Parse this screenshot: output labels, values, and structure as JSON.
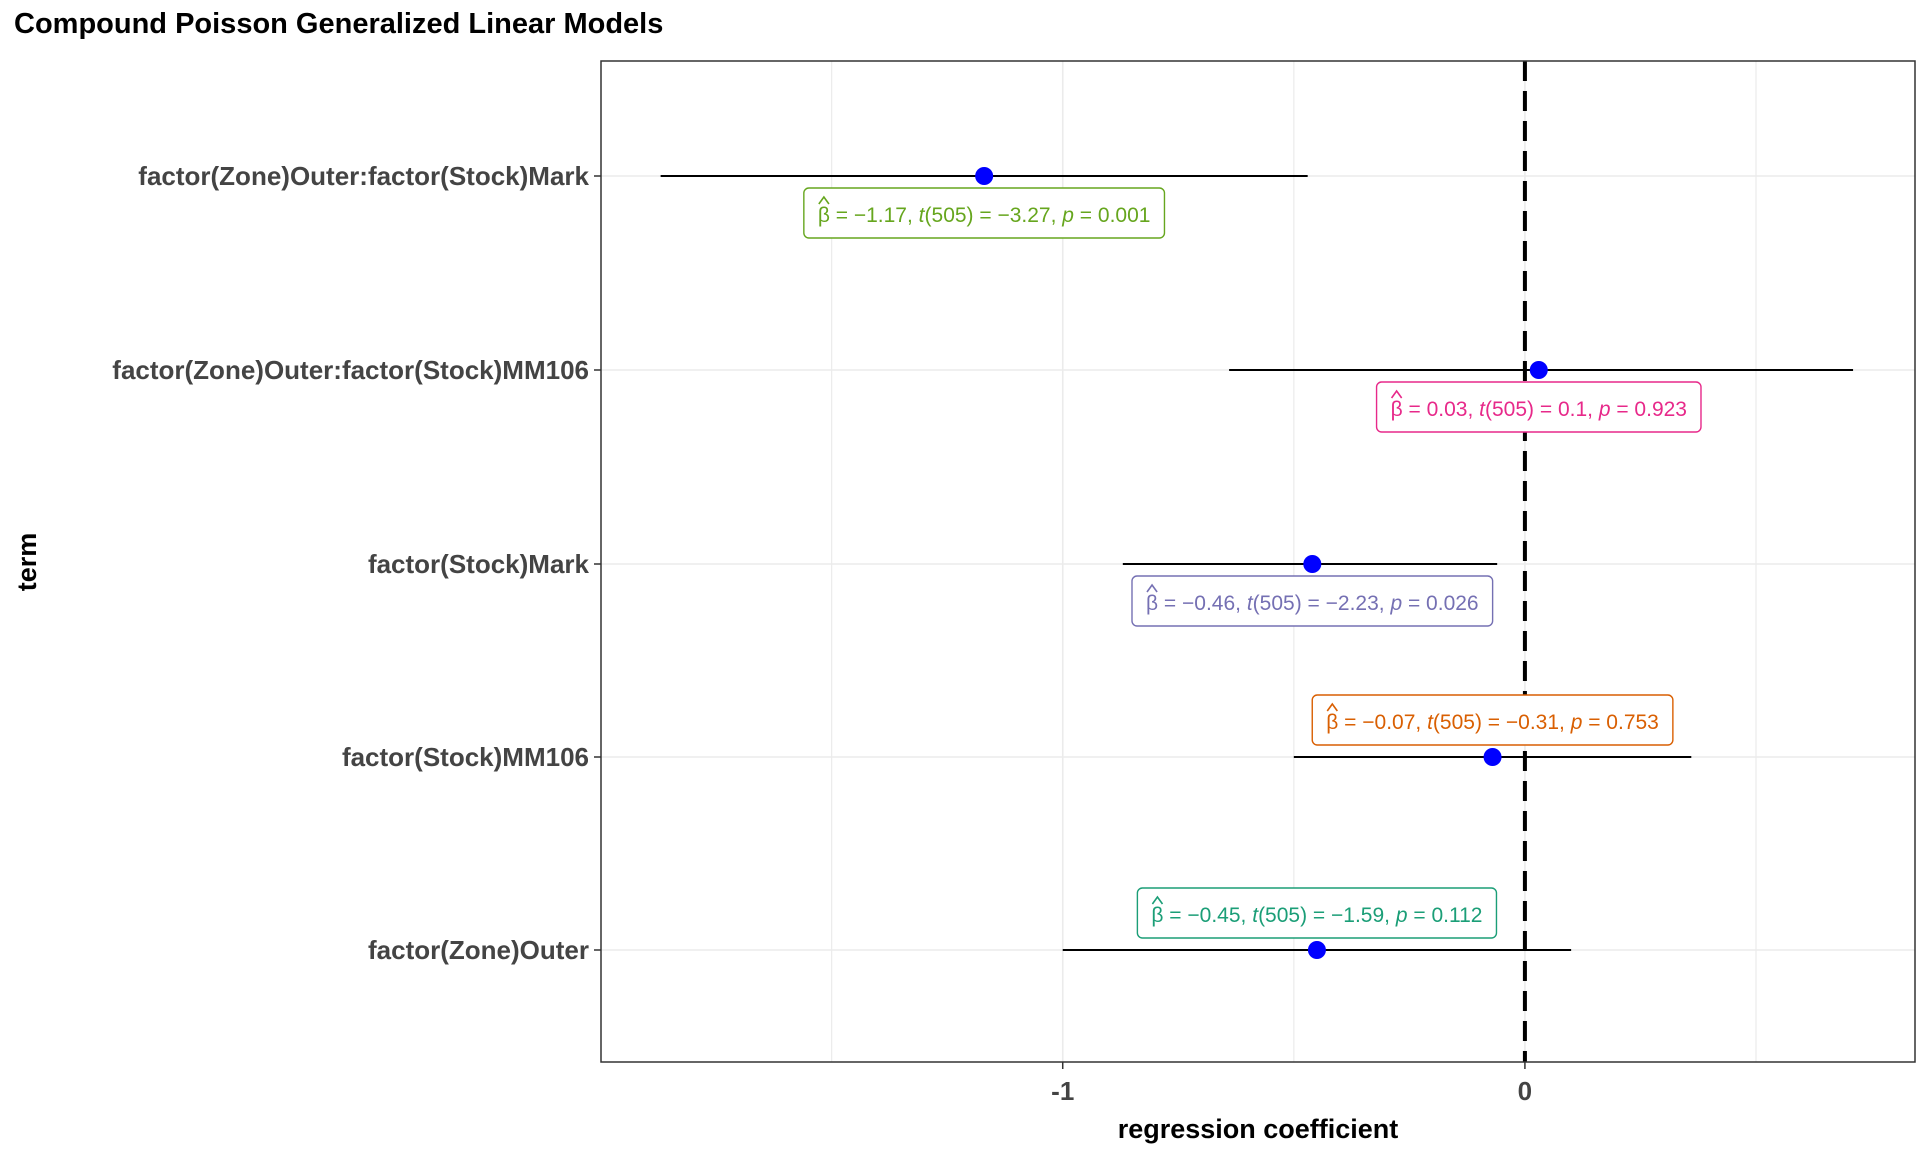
{
  "chart_data": {
    "type": "forest",
    "title": "Compound Poisson Generalized Linear Models",
    "xlabel": "regression coefficient",
    "ylabel": "term",
    "xlim": [
      -1.999,
      0.844
    ],
    "x_ticks": [
      -1,
      0
    ],
    "x_tick_labels": [
      "-1",
      "0"
    ],
    "x_minor_gridlines": [
      -1.5,
      -0.5,
      0.5
    ],
    "reference_line": 0,
    "grid": true,
    "point_color": "#0000ff",
    "terms": [
      {
        "term": "factor(Zone)Outer:factor(Stock)Mark",
        "estimate": -1.17,
        "conf_low": -1.87,
        "conf_high": -0.47,
        "label_color": "#66a61e",
        "label_pos": "below",
        "label_parts": [
          "β",
          " = −1.17,  ",
          "t",
          "(505) = −3.27,  ",
          "p",
          " = 0.001"
        ]
      },
      {
        "term": "factor(Zone)Outer:factor(Stock)MM106",
        "estimate": 0.03,
        "conf_low": -0.64,
        "conf_high": 0.71,
        "label_color": "#e7298a",
        "label_pos": "below",
        "label_parts": [
          "β",
          " = 0.03,  ",
          "t",
          "(505) = 0.1,  ",
          "p",
          " = 0.923"
        ]
      },
      {
        "term": "factor(Stock)Mark",
        "estimate": -0.46,
        "conf_low": -0.87,
        "conf_high": -0.06,
        "label_color": "#7570b3",
        "label_pos": "below",
        "label_parts": [
          "β",
          " = −0.46,  ",
          "t",
          "(505) = −2.23,  ",
          "p",
          " = 0.026"
        ]
      },
      {
        "term": "factor(Stock)MM106",
        "estimate": -0.07,
        "conf_low": -0.5,
        "conf_high": 0.36,
        "label_color": "#d95f02",
        "label_pos": "above",
        "label_parts": [
          "β",
          " = −0.07,  ",
          "t",
          "(505) = −0.31,  ",
          "p",
          " = 0.753"
        ]
      },
      {
        "term": "factor(Zone)Outer",
        "estimate": -0.45,
        "conf_low": -1.0,
        "conf_high": 0.1,
        "label_color": "#1b9e77",
        "label_pos": "above",
        "label_parts": [
          "β",
          " = −0.45,  ",
          "t",
          "(505) = −1.59,  ",
          "p",
          " = 0.112"
        ]
      }
    ]
  }
}
